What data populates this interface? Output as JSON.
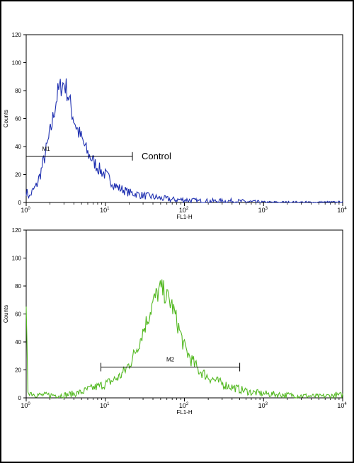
{
  "chart_data": [
    {
      "type": "line",
      "title": "",
      "xlabel": "FL1-H",
      "ylabel": "Counts",
      "xscale": "log",
      "xlim": [
        1,
        10000
      ],
      "ylim": [
        0,
        120
      ],
      "yticks": [
        0,
        20,
        40,
        60,
        80,
        100,
        120
      ],
      "xticks": [
        {
          "base": "10",
          "exp": "0"
        },
        {
          "base": "10",
          "exp": "1"
        },
        {
          "base": "10",
          "exp": "2"
        },
        {
          "base": "10",
          "exp": "3"
        },
        {
          "base": "10",
          "exp": "4"
        }
      ],
      "grid": false,
      "color": "#1e2fb0",
      "series": [
        {
          "x": [
            1,
            1.1,
            1.2,
            1.35,
            1.5,
            1.7,
            1.9,
            2.1,
            2.3,
            2.5,
            2.8,
            3.0,
            3.2,
            3.5,
            3.8,
            4.2,
            4.6,
            5.0,
            5.5,
            6.0,
            7.0,
            8.0,
            9.0,
            10,
            12,
            14,
            17,
            20,
            25,
            30,
            40,
            50,
            70,
            100,
            150,
            200,
            400,
            1000,
            3000,
            10000
          ],
          "y": [
            8,
            4,
            8,
            12,
            20,
            32,
            44,
            55,
            68,
            78,
            84,
            85,
            82,
            74,
            64,
            56,
            50,
            46,
            40,
            35,
            30,
            25,
            22,
            20,
            15,
            11,
            9,
            7,
            6,
            5,
            4,
            3,
            2,
            2,
            1,
            1,
            1,
            0,
            0,
            0
          ]
        }
      ],
      "markers": [
        {
          "label": "M1",
          "x_start": 1,
          "x_end": 22,
          "y": 33,
          "annotation": "Control"
        }
      ]
    },
    {
      "type": "line",
      "title": "",
      "xlabel": "FL1-H",
      "ylabel": "Counts",
      "xscale": "log",
      "xlim": [
        1,
        10000
      ],
      "ylim": [
        0,
        120
      ],
      "yticks": [
        0,
        20,
        40,
        60,
        80,
        100,
        120
      ],
      "xticks": [
        {
          "base": "10",
          "exp": "0"
        },
        {
          "base": "10",
          "exp": "1"
        },
        {
          "base": "10",
          "exp": "2"
        },
        {
          "base": "10",
          "exp": "3"
        },
        {
          "base": "10",
          "exp": "4"
        }
      ],
      "grid": false,
      "color": "#52b820",
      "series": [
        {
          "x": [
            1,
            1.05,
            1.2,
            1.5,
            2,
            3,
            4,
            5,
            6,
            8,
            10,
            12,
            15,
            18,
            22,
            26,
            30,
            35,
            40,
            45,
            50,
            55,
            60,
            70,
            80,
            90,
            100,
            120,
            150,
            200,
            300,
            500,
            700,
            1000,
            2000,
            5000,
            10000
          ],
          "y": [
            60,
            5,
            3,
            2,
            2,
            2,
            3,
            4,
            6,
            8,
            10,
            12,
            15,
            20,
            28,
            38,
            48,
            58,
            68,
            74,
            78,
            76,
            72,
            66,
            55,
            45,
            36,
            28,
            20,
            15,
            10,
            6,
            4,
            3,
            2,
            1,
            2
          ]
        }
      ],
      "markers": [
        {
          "label": "M2",
          "x_start": 8.8,
          "x_end": 500,
          "y": 22,
          "annotation": ""
        }
      ]
    }
  ]
}
